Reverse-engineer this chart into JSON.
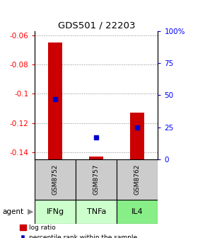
{
  "title": "GDS501 / 22203",
  "samples": [
    "GSM8752",
    "GSM8757",
    "GSM8762"
  ],
  "agents": [
    "IFNg",
    "TNFa",
    "IL4"
  ],
  "log_ratios": [
    -0.065,
    -0.143,
    -0.113
  ],
  "percentile_ranks": [
    0.47,
    0.17,
    0.25
  ],
  "ylim_left": [
    -0.145,
    -0.057
  ],
  "ylim_right": [
    0.0,
    1.0
  ],
  "yticks_left": [
    -0.06,
    -0.08,
    -0.1,
    -0.12,
    -0.14
  ],
  "yticks_right": [
    0.0,
    0.25,
    0.5,
    0.75,
    1.0
  ],
  "ytick_labels_left": [
    "-0.06",
    "-0.08",
    "-0.1",
    "-0.12",
    "-0.14"
  ],
  "ytick_labels_right": [
    "0",
    "25",
    "50",
    "75",
    "100%"
  ],
  "bar_color": "#cc0000",
  "dot_color": "#0000cc",
  "sample_bg_color": "#cccccc",
  "agent_colors": [
    "#ccffcc",
    "#ccffcc",
    "#88ee88"
  ],
  "grid_color": "#888888",
  "bar_width": 0.35
}
